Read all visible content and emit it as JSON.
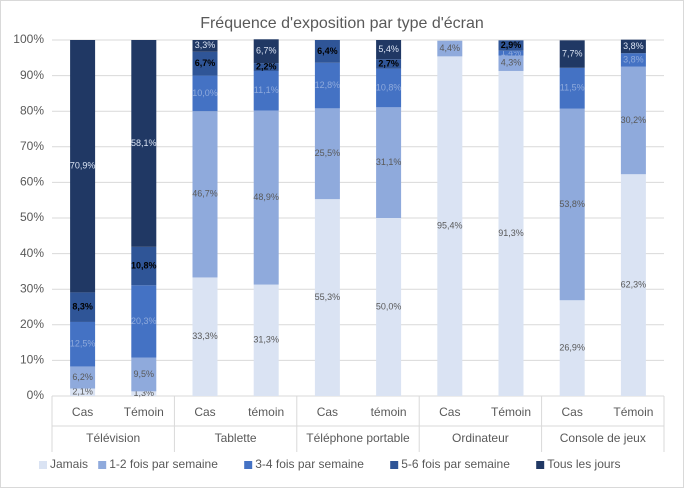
{
  "chart_data": {
    "type": "stacked_bar",
    "title": "Fréquence d'exposition par type d'écran",
    "categories": [
      "Cas",
      "Témoin",
      "Cas",
      "témoin",
      "Cas",
      "témoin",
      "Cas",
      "Témoin",
      "Cas",
      "Témoin"
    ],
    "groups": [
      "Télévision",
      "Tablette",
      "Téléphone portable",
      "Ordinateur",
      "Console de jeux"
    ],
    "ylim": [
      0,
      100
    ],
    "yticks": [
      {
        "value": 0,
        "label": "0%"
      },
      {
        "value": 10,
        "label": "10%"
      },
      {
        "value": 20,
        "label": "20%"
      },
      {
        "value": 30,
        "label": "30%"
      },
      {
        "value": 40,
        "label": "40%"
      },
      {
        "value": 50,
        "label": "50%"
      },
      {
        "value": 60,
        "label": "60%"
      },
      {
        "value": 70,
        "label": "70%"
      },
      {
        "value": 80,
        "label": "80%"
      },
      {
        "value": 90,
        "label": "90%"
      },
      {
        "value": 100,
        "label": "100%"
      }
    ],
    "grid": true,
    "legend": "bottom",
    "series": [
      {
        "name": "Jamais",
        "color": "#dae3f3",
        "values": [
          2.1,
          1.3,
          33.3,
          31.3,
          55.3,
          50.0,
          95.4,
          91.3,
          26.9,
          62.3
        ],
        "value_labels": [
          "2,1%",
          "1,3%",
          "33,3%",
          "31,3%",
          "55,3%",
          "50,0%",
          "95,4%",
          "91,3%",
          "26,9%",
          "62,3%"
        ]
      },
      {
        "name": "1-2 fois par semaine",
        "color": "#8faadc",
        "values": [
          6.2,
          9.5,
          46.7,
          48.9,
          25.5,
          31.1,
          4.4,
          4.3,
          53.8,
          30.2
        ],
        "value_labels": [
          "6,2%",
          "9,5%",
          "46,7%",
          "48,9%",
          "25,5%",
          "31,1%",
          "4,4%",
          "4,3%",
          "53,8%",
          "30,2%"
        ]
      },
      {
        "name": "3-4 fois par semaine",
        "color": "#4472c4",
        "values": [
          12.5,
          20.3,
          10.0,
          11.1,
          12.8,
          10.8,
          0,
          1.4,
          11.5,
          3.8
        ],
        "value_labels": [
          "12,5%",
          "20,3%",
          "10,0%",
          "11,1%",
          "12,8%",
          "10,8%",
          null,
          "1,4%",
          "11,5%",
          "3,8%"
        ]
      },
      {
        "name": "5-6 fois par semaine",
        "color": "#2f5597",
        "values": [
          8.3,
          10.8,
          6.7,
          2.2,
          6.4,
          2.7,
          0,
          2.9,
          0,
          0
        ],
        "value_labels": [
          "8,3%",
          "10,8%",
          "6,7%",
          "2,2%",
          "6,4%",
          "2,7%",
          null,
          "2,9%",
          null,
          null
        ]
      },
      {
        "name": "Tous les jours",
        "color": "#203864",
        "values": [
          70.9,
          58.1,
          3.3,
          6.7,
          0,
          5.4,
          0,
          0,
          7.7,
          3.8
        ],
        "value_labels": [
          "70,9%",
          "58,1%",
          "3,3%",
          "6,7%",
          null,
          "5,4%",
          null,
          null,
          "7,7%",
          "3,8%"
        ]
      }
    ]
  }
}
